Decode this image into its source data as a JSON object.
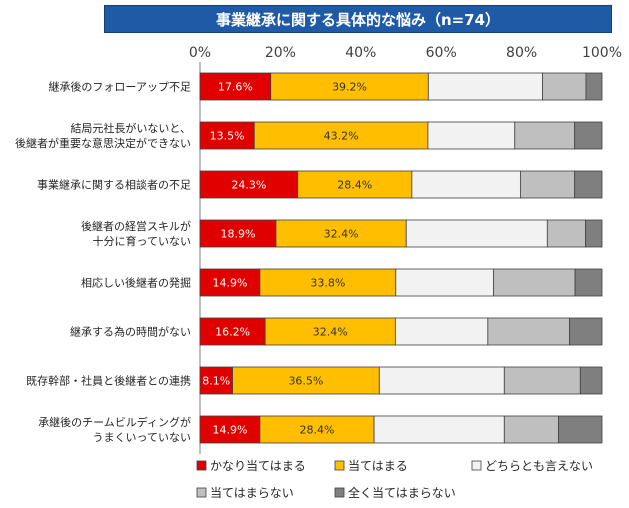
{
  "chart_data": {
    "type": "bar",
    "orientation": "horizontal",
    "stacked": true,
    "title": "事業継承に関する具体的な悩み（n=74）",
    "xlim": [
      0,
      100
    ],
    "x_ticks": [
      "0%",
      "20%",
      "40%",
      "60%",
      "80%",
      "100%"
    ],
    "categories": [
      [
        "継承後のフォローアップ不足"
      ],
      [
        "結局元社長がいないと、",
        "後継者が重要な意思決定ができない"
      ],
      [
        "事業継承に関する相談者の不足"
      ],
      [
        "後継者の経営スキルが",
        "十分に育っていない"
      ],
      [
        "相応しい後継者の発掘"
      ],
      [
        "継承する為の時間がない"
      ],
      [
        "既存幹部・社員と後継者との連携"
      ],
      [
        "承継後のチームビルディングが",
        "うまくいっていない"
      ]
    ],
    "series": [
      {
        "name": "かなり当てはまる",
        "color": "#e00000",
        "label_color": "#ffffff",
        "show_labels": true,
        "values": [
          17.6,
          13.5,
          24.3,
          18.9,
          14.9,
          16.2,
          8.1,
          14.9
        ],
        "labels": [
          "17.6%",
          "13.5%",
          "24.3%",
          "18.9%",
          "14.9%",
          "16.2%",
          "8.1%",
          "14.9%"
        ]
      },
      {
        "name": "当てはまる",
        "color": "#ffbf00",
        "label_color": "#333333",
        "show_labels": true,
        "values": [
          39.2,
          43.2,
          28.4,
          32.4,
          33.8,
          32.4,
          36.5,
          28.4
        ],
        "labels": [
          "39.2%",
          "43.2%",
          "28.4%",
          "32.4%",
          "33.8%",
          "32.4%",
          "36.5%",
          "28.4%"
        ]
      },
      {
        "name": "どちらとも言えない",
        "color": "#f2f2f2",
        "show_labels": false,
        "values": [
          28.4,
          21.6,
          27.0,
          35.1,
          24.3,
          23.0,
          31.1,
          32.4
        ]
      },
      {
        "name": "当てはまらない",
        "color": "#bfbfbf",
        "show_labels": false,
        "values": [
          10.8,
          14.9,
          13.5,
          9.5,
          20.3,
          20.3,
          18.9,
          13.5
        ]
      },
      {
        "name": "全く当てはまらない",
        "color": "#7f7f7f",
        "show_labels": false,
        "values": [
          4.0,
          6.8,
          6.8,
          4.1,
          6.7,
          8.1,
          5.4,
          10.8
        ]
      }
    ]
  }
}
